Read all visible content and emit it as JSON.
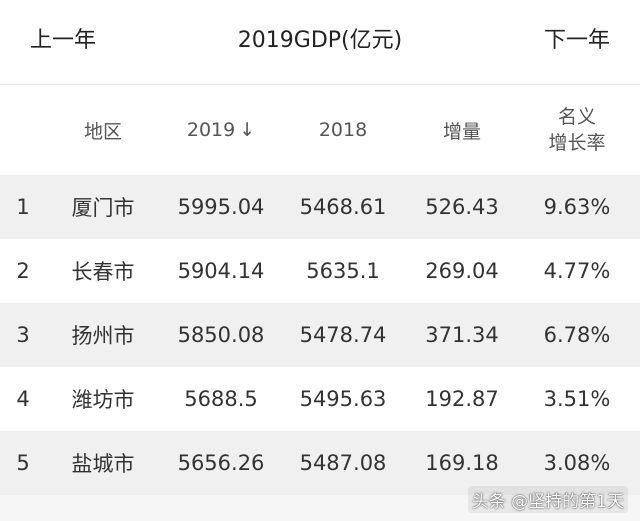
{
  "nav": {
    "prev_label": "上一年",
    "title": "2019GDP(亿元)",
    "next_label": "下一年"
  },
  "table": {
    "headers": {
      "region": "地区",
      "y2019": "2019",
      "sort_arrow": "↓",
      "y2018": "2018",
      "increase": "增量",
      "rate_line1": "名义",
      "rate_line2": "增长率"
    },
    "rows": [
      {
        "rank": "1",
        "region": "厦门市",
        "y2019": "5995.04",
        "y2018": "5468.61",
        "increase": "526.43",
        "rate": "9.63%"
      },
      {
        "rank": "2",
        "region": "长春市",
        "y2019": "5904.14",
        "y2018": "5635.1",
        "increase": "269.04",
        "rate": "4.77%"
      },
      {
        "rank": "3",
        "region": "扬州市",
        "y2019": "5850.08",
        "y2018": "5478.74",
        "increase": "371.34",
        "rate": "6.78%"
      },
      {
        "rank": "4",
        "region": "潍坊市",
        "y2019": "5688.5",
        "y2018": "5495.63",
        "increase": "192.87",
        "rate": "3.51%"
      },
      {
        "rank": "5",
        "region": "盐城市",
        "y2019": "5656.26",
        "y2018": "5487.08",
        "increase": "169.18",
        "rate": "3.08%"
      }
    ]
  },
  "watermark": "头条 @坚持的第1天"
}
